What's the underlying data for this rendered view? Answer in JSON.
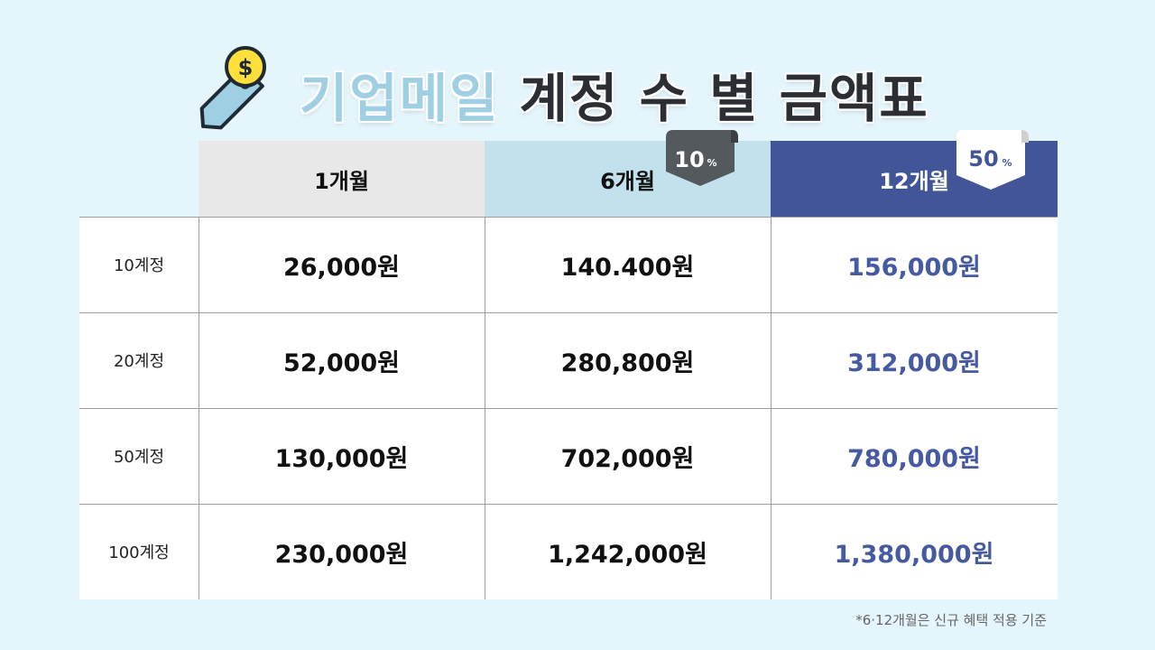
{
  "title": {
    "accent": "기업메일",
    "rest": "계정 수 별 금액표"
  },
  "icons": {
    "title_icon": "price-tag-dollar-icon"
  },
  "colors": {
    "accent": "#9fcfe3",
    "header_12": "#435599",
    "value_12": "#455aa0",
    "header_6": "#c3e1ec",
    "header_1": "#e8e8e8"
  },
  "columns": [
    {
      "label": "1개월"
    },
    {
      "label": "6개월",
      "badge_num": "10",
      "badge_unit": "%"
    },
    {
      "label": "12개월",
      "badge_num": "50",
      "badge_unit": "%"
    }
  ],
  "rows": [
    {
      "label": "10계정",
      "values": [
        "26,000원",
        "140.400원",
        "156,000원"
      ]
    },
    {
      "label": "20계정",
      "values": [
        "52,000원",
        "280,800원",
        "312,000원"
      ]
    },
    {
      "label": "50계정",
      "values": [
        "130,000원",
        "702,000원",
        "780,000원"
      ]
    },
    {
      "label": "100계정",
      "values": [
        "230,000원",
        "1,242,000원",
        "1,380,000원"
      ]
    }
  ],
  "footnote": "*6·12개월은 신규 혜택 적용 기준"
}
